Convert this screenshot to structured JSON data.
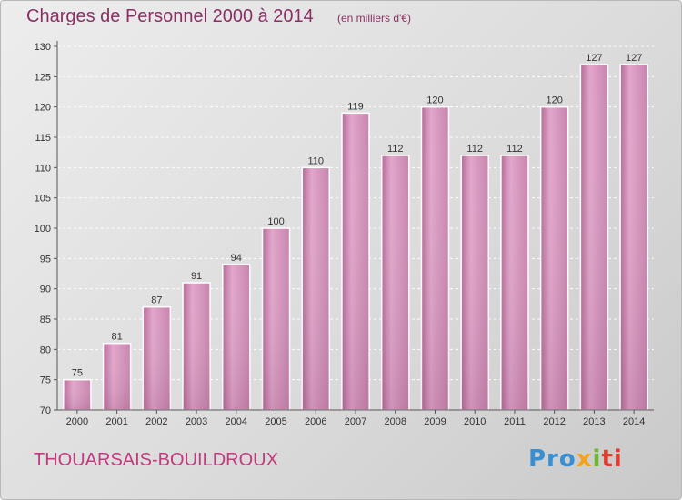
{
  "header": {
    "title": "Charges de Personnel 2000 à 2014",
    "subtitle": "(en milliers d'€)"
  },
  "footer": {
    "commune": "THOUARSAIS-BOUILDROUX",
    "brand": [
      "Pro",
      "x",
      "i",
      "ti"
    ]
  },
  "colors": {
    "bar": "#cd8fb6",
    "bar_light": "#e2a6cb",
    "bar_dark": "#b56b98",
    "text_title": "#8a2f64",
    "commune": "#c23a7f",
    "grid": "#ffffff"
  },
  "chart_data": {
    "type": "bar",
    "title": "Charges de Personnel 2000 à 2014",
    "subtitle": "(en milliers d'€)",
    "categories": [
      "2000",
      "2001",
      "2002",
      "2003",
      "2004",
      "2005",
      "2006",
      "2007",
      "2008",
      "2009",
      "2010",
      "2011",
      "2012",
      "2013",
      "2014"
    ],
    "values": [
      75,
      81,
      87,
      91,
      94,
      100,
      110,
      119,
      112,
      120,
      112,
      112,
      120,
      127,
      127
    ],
    "ylim": [
      70,
      130
    ],
    "yticks": [
      70,
      75,
      80,
      85,
      90,
      95,
      100,
      105,
      110,
      115,
      120,
      125,
      130
    ],
    "grid": true,
    "xlabel": "",
    "ylabel": ""
  }
}
